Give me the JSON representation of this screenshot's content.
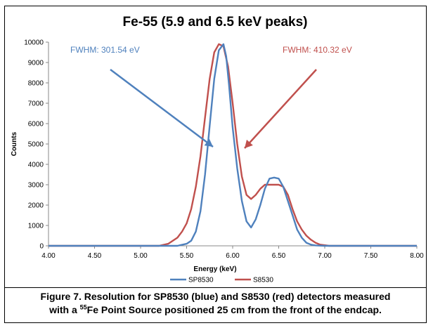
{
  "chart_data": {
    "type": "line",
    "title": "Fe-55 (5.9 and 6.5 keV peaks)",
    "xlabel": "Energy (keV)",
    "ylabel": "Counts",
    "xlim": [
      4.0,
      8.0
    ],
    "ylim": [
      0,
      10000
    ],
    "xticks": [
      "4.00",
      "4.50",
      "5.00",
      "5.50",
      "6.00",
      "6.50",
      "7.00",
      "7.50",
      "8.00"
    ],
    "yticks": [
      "0",
      "1000",
      "2000",
      "3000",
      "4000",
      "5000",
      "6000",
      "7000",
      "8000",
      "9000",
      "10000"
    ],
    "grid": false,
    "legend_position": "bottom",
    "series": [
      {
        "name": "SP8530",
        "color": "#4f81bd",
        "x": [
          4.0,
          5.4,
          5.5,
          5.55,
          5.6,
          5.65,
          5.7,
          5.75,
          5.8,
          5.85,
          5.9,
          5.93,
          5.96,
          6.0,
          6.05,
          6.1,
          6.15,
          6.2,
          6.25,
          6.3,
          6.35,
          6.4,
          6.45,
          6.5,
          6.55,
          6.6,
          6.65,
          6.7,
          6.75,
          6.8,
          6.85,
          6.9,
          7.0,
          8.0
        ],
        "y": [
          0,
          0,
          100,
          250,
          700,
          1700,
          3500,
          5900,
          8200,
          9600,
          9900,
          9300,
          7900,
          5800,
          3800,
          2200,
          1200,
          900,
          1300,
          2000,
          2800,
          3300,
          3350,
          3300,
          2900,
          2200,
          1500,
          800,
          400,
          150,
          60,
          20,
          0,
          0
        ]
      },
      {
        "name": "S8530",
        "color": "#c0504d",
        "x": [
          4.0,
          5.2,
          5.3,
          5.4,
          5.45,
          5.5,
          5.55,
          5.6,
          5.65,
          5.7,
          5.75,
          5.8,
          5.85,
          5.9,
          5.95,
          6.0,
          6.05,
          6.1,
          6.15,
          6.2,
          6.25,
          6.3,
          6.35,
          6.4,
          6.45,
          6.5,
          6.55,
          6.6,
          6.65,
          6.7,
          6.75,
          6.8,
          6.85,
          6.9,
          6.95,
          7.05,
          8.0
        ],
        "y": [
          0,
          0,
          100,
          400,
          700,
          1100,
          1800,
          2900,
          4400,
          6300,
          8200,
          9500,
          9900,
          9800,
          8800,
          7000,
          5000,
          3400,
          2500,
          2300,
          2500,
          2800,
          3000,
          3000,
          3000,
          3000,
          2900,
          2500,
          1800,
          1200,
          800,
          500,
          300,
          150,
          60,
          0,
          0
        ]
      }
    ],
    "annotations": [
      {
        "text": "FWHM: 301.54 eV",
        "color": "#4f81bd"
      },
      {
        "text": "FWHM: 410.32 eV",
        "color": "#c0504d"
      }
    ]
  },
  "caption": {
    "line1": "Figure 7. Resolution for SP8530 (blue) and S8530 (red) detectors measured",
    "line2_prefix": "with a ",
    "line2_sup": "55",
    "line2_suffix": "Fe Point Source positioned 25 cm from the front of the endcap."
  }
}
